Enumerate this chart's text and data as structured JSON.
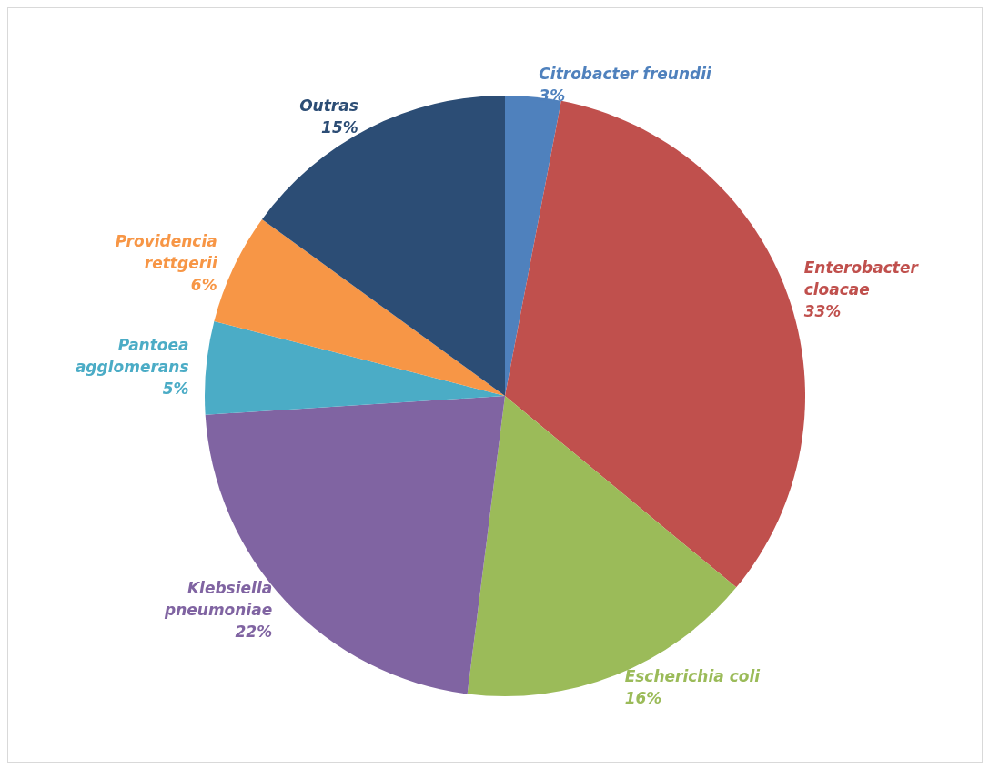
{
  "chart_data": {
    "type": "pie",
    "categories": [
      "Citrobacter freundii",
      "Enterobacter cloacae",
      "Escherichia coli",
      "Klebsiella pneumoniae",
      "Pantoea agglomerans",
      "Providencia rettgerii",
      "Outras"
    ],
    "values": [
      3,
      33,
      16,
      22,
      5,
      6,
      15
    ],
    "value_labels": [
      "3%",
      "33%",
      "16%",
      "22%",
      "5%",
      "6%",
      "15%"
    ],
    "colors": [
      "#4f81bd",
      "#c0504d",
      "#9bbb59",
      "#8064a2",
      "#4bacc6",
      "#f79646",
      "#2c4d75"
    ],
    "legend": false
  }
}
